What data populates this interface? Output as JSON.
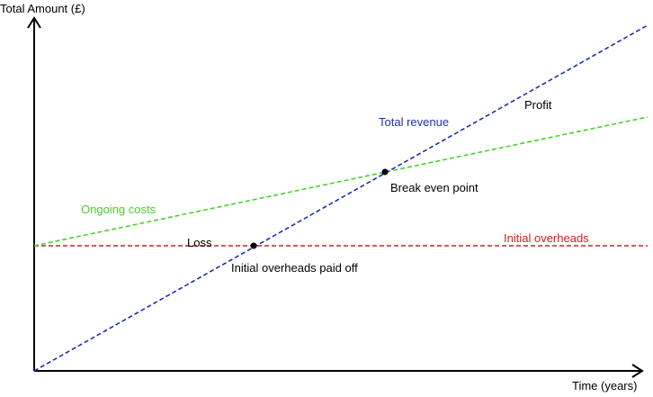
{
  "axes": {
    "y_label": "Total Amount (£)",
    "x_label": "Time (years)"
  },
  "lines": {
    "revenue": {
      "label": "Total revenue",
      "color": "#1f2fb0"
    },
    "ongoing": {
      "label": "Ongoing costs",
      "color": "#4ccf2a"
    },
    "overheads": {
      "label": "Initial overheads",
      "color": "#cc2222"
    }
  },
  "annotations": {
    "profit": "Profit",
    "loss": "Loss",
    "break_even": "Break even point",
    "overheads_paid_off": "Initial overheads paid off"
  },
  "colors": {
    "axis": "#000000",
    "text": "#000000"
  }
}
